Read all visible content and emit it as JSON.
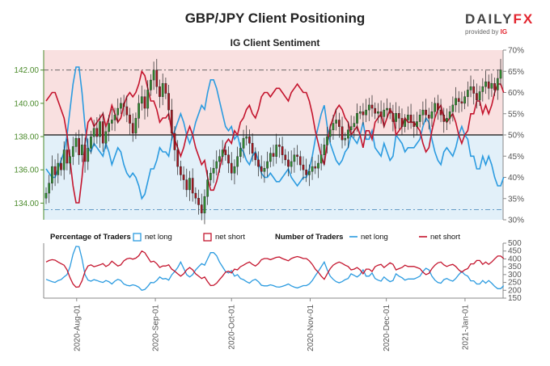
{
  "title": "GBP/JPY Client Positioning",
  "subtitle": "IG Client Sentiment",
  "logo": {
    "brand_a": "DAILY",
    "brand_b": "FX",
    "provided": "provided by",
    "ig": "IG"
  },
  "colors": {
    "long": "#2b9be0",
    "short": "#c4142d",
    "up": "#2e8b2e",
    "down": "#a3141e",
    "axis": "#4a8a2a",
    "bg_short": "#f9e0e0",
    "bg_long": "#e2f0f9"
  },
  "chart_data": [
    {
      "type": "candlestick",
      "price_axis": {
        "ylim": [
          133.0,
          143.2
        ],
        "ticks": [
          "134.00",
          "136.00",
          "138.00",
          "140.00",
          "142.00"
        ],
        "values": [
          134,
          136,
          138,
          140,
          142
        ]
      },
      "pct_axis": {
        "ylim": [
          30,
          70
        ],
        "ticks": [
          "30%",
          "35%",
          "40%",
          "45%",
          "50%",
          "55%",
          "60%",
          "65%",
          "70%"
        ],
        "values": [
          30,
          35,
          40,
          45,
          50,
          55,
          60,
          65,
          70
        ]
      },
      "x_ticks": [
        "2020-Aug-01",
        "2020-Sep-01",
        "2020-Oct-01",
        "2020-Nov-01",
        "2020-Dec-01",
        "2021-Jan-01"
      ],
      "x_tick_days": [
        13,
        44,
        74,
        105,
        135,
        166
      ],
      "x_range_days": [
        0,
        181
      ],
      "reference_lines": {
        "price_hi": 142.0,
        "price_lo": 133.6,
        "pct_mid": 50
      },
      "closes": [
        134.6,
        135.2,
        136.2,
        135.7,
        136.4,
        136.0,
        137.2,
        136.4,
        136.8,
        137.4,
        137.9,
        136.9,
        137.5,
        136.5,
        137.3,
        138.0,
        138.5,
        138.0,
        138.9,
        137.6,
        138.3,
        138.8,
        139.0,
        139.3,
        139.7,
        140.0,
        139.8,
        139.3,
        138.8,
        138.2,
        139.1,
        140.0,
        140.4,
        139.7,
        140.8,
        141.4,
        142.0,
        141.0,
        140.4,
        141.2,
        140.6,
        139.6,
        138.2,
        137.2,
        136.2,
        135.7,
        135.4,
        134.8,
        135.5,
        134.6,
        134.3,
        133.9,
        133.4,
        134.4,
        135.4,
        135.8,
        136.1,
        136.5,
        136.8,
        137.2,
        136.9,
        136.4,
        135.8,
        136.2,
        136.8,
        137.3,
        137.9,
        138.0,
        137.6,
        137.0,
        136.6,
        136.2,
        135.9,
        136.1,
        136.5,
        137.0,
        136.8,
        137.5,
        137.4,
        136.9,
        136.6,
        136.2,
        136.5,
        136.9,
        136.8,
        136.3,
        136.0,
        135.7,
        135.9,
        136.2,
        136.1,
        136.4,
        136.9,
        137.5,
        138.0,
        138.4,
        138.8,
        139.0,
        138.6,
        137.8,
        137.9,
        138.4,
        138.6,
        138.8,
        139.4,
        139.5,
        139.3,
        139.6,
        139.9,
        139.7,
        139.4,
        139.5,
        139.2,
        139.6,
        139.7,
        139.4,
        138.9,
        139.4,
        139.1,
        138.6,
        139.0,
        139.3,
        138.9,
        138.6,
        138.9,
        139.3,
        139.6,
        139.3,
        139.1,
        139.5,
        140.0,
        139.6,
        139.3,
        138.9,
        139.1,
        139.5,
        139.9,
        140.3,
        140.1,
        140.0,
        140.4,
        140.8,
        141.0,
        140.6,
        140.2,
        140.7,
        141.0,
        141.3,
        140.9,
        141.2,
        140.8,
        141.5,
        142.0
      ],
      "long_pct": [
        42,
        41,
        40,
        40,
        42,
        44,
        46,
        50,
        56,
        62,
        66,
        66,
        60,
        52,
        47,
        46,
        48,
        47,
        46,
        45,
        48,
        46,
        43,
        45,
        47,
        46,
        43,
        41,
        40,
        41,
        40,
        38,
        35,
        36,
        39,
        42,
        42,
        44,
        47,
        46,
        46,
        45,
        49,
        51,
        53,
        55,
        53,
        50,
        48,
        50,
        53,
        55,
        57,
        56,
        60,
        63,
        63,
        61,
        58,
        55,
        52,
        51,
        52,
        49,
        50,
        47,
        46,
        44,
        43,
        45,
        46,
        44,
        41,
        40,
        40,
        41,
        40,
        39,
        39,
        40,
        41,
        42,
        40,
        39,
        38,
        39,
        40,
        40,
        42,
        45,
        49,
        52,
        55,
        57,
        52,
        48,
        46,
        44,
        43,
        44,
        46,
        47,
        50,
        49,
        48,
        50,
        53,
        49,
        49,
        51,
        47,
        46,
        45,
        48,
        46,
        44,
        45,
        50,
        49,
        48,
        46,
        47,
        47,
        47,
        48,
        49,
        52,
        54,
        53,
        49,
        46,
        44,
        43,
        46,
        47,
        46,
        45,
        47,
        50,
        52,
        50,
        49,
        45,
        45,
        42,
        42,
        45,
        43,
        45,
        43,
        40,
        38,
        38,
        40
      ],
      "short_pct": [
        58,
        59,
        60,
        60,
        58,
        56,
        54,
        50,
        44,
        38,
        34,
        34,
        40,
        48,
        53,
        54,
        52,
        53,
        54,
        55,
        52,
        54,
        57,
        55,
        53,
        54,
        57,
        59,
        60,
        59,
        60,
        62,
        65,
        64,
        61,
        58,
        58,
        56,
        53,
        54,
        54,
        55,
        51,
        49,
        47,
        45,
        47,
        50,
        52,
        50,
        47,
        45,
        43,
        44,
        40,
        37,
        37,
        39,
        42,
        45,
        48,
        49,
        48,
        51,
        50,
        53,
        54,
        56,
        57,
        55,
        54,
        56,
        59,
        60,
        60,
        59,
        60,
        61,
        61,
        60,
        59,
        58,
        60,
        61,
        62,
        61,
        60,
        60,
        58,
        55,
        51,
        48,
        45,
        43,
        48,
        52,
        54,
        56,
        57,
        56,
        54,
        53,
        50,
        51,
        52,
        50,
        47,
        51,
        51,
        49,
        53,
        54,
        55,
        52,
        54,
        56,
        55,
        50,
        51,
        52,
        54,
        53,
        53,
        53,
        52,
        51,
        48,
        46,
        47,
        51,
        54,
        56,
        57,
        54,
        53,
        54,
        55,
        53,
        50,
        48,
        50,
        51,
        55,
        55,
        58,
        58,
        55,
        57,
        55,
        57,
        60,
        62,
        62,
        60
      ],
      "traders_axis": {
        "ylim": [
          150,
          500
        ],
        "ticks": [
          "150",
          "200",
          "250",
          "300",
          "350",
          "400",
          "450",
          "500"
        ],
        "values": [
          150,
          200,
          250,
          300,
          350,
          400,
          450,
          500
        ]
      },
      "long_traders": [
        270,
        262,
        255,
        250,
        262,
        268,
        285,
        300,
        350,
        430,
        480,
        478,
        400,
        300,
        265,
        258,
        268,
        262,
        255,
        250,
        262,
        255,
        240,
        258,
        270,
        262,
        240,
        232,
        228,
        235,
        230,
        220,
        200,
        205,
        225,
        250,
        248,
        262,
        285,
        272,
        275,
        265,
        298,
        320,
        345,
        380,
        340,
        300,
        285,
        300,
        330,
        350,
        370,
        360,
        400,
        440,
        440,
        420,
        380,
        350,
        320,
        310,
        325,
        290,
        300,
        275,
        268,
        255,
        245,
        262,
        270,
        255,
        232,
        228,
        228,
        235,
        230,
        222,
        220,
        225,
        232,
        240,
        228,
        220,
        215,
        222,
        230,
        230,
        240,
        262,
        292,
        320,
        350,
        380,
        330,
        290,
        270,
        255,
        248,
        255,
        268,
        275,
        305,
        295,
        285,
        300,
        330,
        290,
        290,
        310,
        275,
        265,
        258,
        285,
        268,
        255,
        262,
        305,
        290,
        280,
        265,
        272,
        272,
        272,
        280,
        290,
        320,
        340,
        330,
        290,
        265,
        250,
        245,
        268,
        275,
        265,
        258,
        275,
        300,
        320,
        300,
        290,
        260,
        260,
        240,
        240,
        262,
        245,
        262,
        245,
        225,
        210,
        210,
        230
      ],
      "short_traders": [
        380,
        390,
        395,
        392,
        380,
        370,
        360,
        330,
        280,
        240,
        220,
        222,
        260,
        320,
        355,
        362,
        350,
        356,
        362,
        370,
        352,
        362,
        385,
        370,
        355,
        362,
        388,
        400,
        405,
        398,
        405,
        420,
        450,
        440,
        410,
        380,
        385,
        370,
        345,
        355,
        355,
        362,
        335,
        322,
        305,
        290,
        305,
        330,
        345,
        330,
        305,
        290,
        275,
        285,
        255,
        230,
        232,
        245,
        268,
        290,
        315,
        322,
        310,
        335,
        330,
        350,
        360,
        372,
        380,
        365,
        355,
        370,
        395,
        402,
        402,
        395,
        402,
        410,
        412,
        402,
        395,
        388,
        402,
        410,
        415,
        410,
        402,
        402,
        388,
        365,
        335,
        315,
        290,
        270,
        305,
        338,
        360,
        372,
        380,
        372,
        360,
        352,
        330,
        335,
        345,
        330,
        305,
        335,
        335,
        320,
        350,
        360,
        365,
        345,
        360,
        375,
        365,
        330,
        338,
        345,
        360,
        352,
        352,
        352,
        345,
        338,
        315,
        300,
        308,
        338,
        360,
        375,
        380,
        362,
        352,
        360,
        365,
        352,
        330,
        315,
        330,
        338,
        368,
        368,
        390,
        390,
        365,
        380,
        365,
        380,
        400,
        418,
        418,
        402
      ]
    }
  ],
  "legend": {
    "pct_title": "Percentage of Traders",
    "net_long": "net long",
    "net_short": "net short",
    "num_title": "Number of Traders",
    "net_long_2": "net long",
    "net_short_2": "net short"
  }
}
